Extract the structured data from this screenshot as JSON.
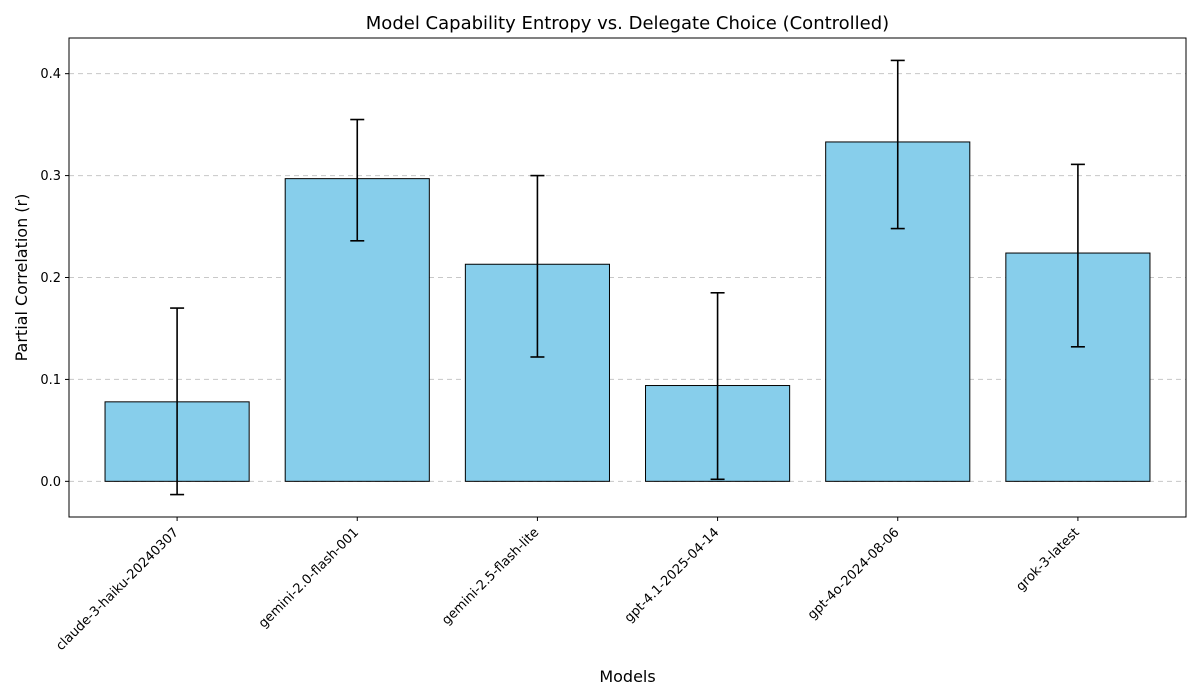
{
  "chart_data": {
    "type": "bar",
    "title": "Model Capability Entropy vs. Delegate Choice (Controlled)",
    "xlabel": "Models",
    "ylabel": "Partial Correlation (r)",
    "categories": [
      "claude-3-haiku-20240307",
      "gemini-2.0-flash-001",
      "gemini-2.5-flash-lite",
      "gpt-4.1-2025-04-14",
      "gpt-4o-2024-08-06",
      "grok-3-latest"
    ],
    "values": [
      0.078,
      0.297,
      0.213,
      0.094,
      0.333,
      0.224
    ],
    "error_low": [
      -0.013,
      0.236,
      0.122,
      0.002,
      0.248,
      0.132
    ],
    "error_high": [
      0.17,
      0.355,
      0.3,
      0.185,
      0.413,
      0.311
    ],
    "ylim": [
      -0.035,
      0.435
    ],
    "yticks": [
      0.0,
      0.1,
      0.2,
      0.3,
      0.4
    ],
    "ytick_labels": [
      "0.0",
      "0.1",
      "0.2",
      "0.3",
      "0.4"
    ],
    "grid": "y-dashed",
    "bar_color": "#87CEEB",
    "edge_color": "#000000",
    "grid_color": "#c8c8c8"
  }
}
